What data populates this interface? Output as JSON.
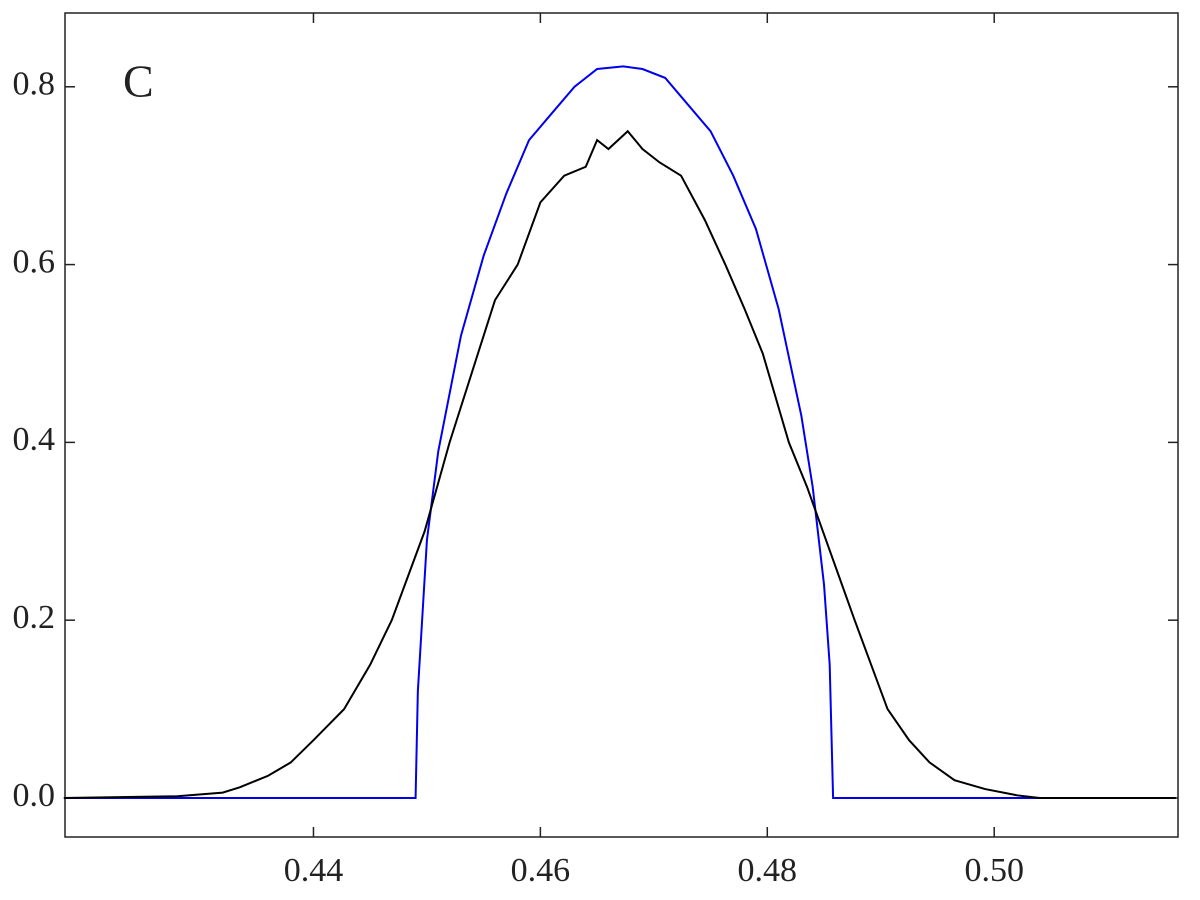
{
  "chart_data": {
    "type": "line",
    "panel_label": "C",
    "series": [
      {
        "color": "#0000ee",
        "x": [
          0.418,
          0.449,
          0.4492,
          0.45,
          0.451,
          0.453,
          0.455,
          0.457,
          0.459,
          0.461,
          0.463,
          0.465,
          0.4673,
          0.469,
          0.471,
          0.473,
          0.475,
          0.477,
          0.479,
          0.481,
          0.483,
          0.484,
          0.485,
          0.4855,
          0.4858,
          0.516
        ],
        "values": [
          0,
          0,
          0.12,
          0.29,
          0.39,
          0.52,
          0.61,
          0.68,
          0.74,
          0.77,
          0.8,
          0.82,
          0.823,
          0.82,
          0.81,
          0.78,
          0.75,
          0.7,
          0.64,
          0.55,
          0.43,
          0.35,
          0.24,
          0.15,
          0,
          0
        ]
      },
      {
        "color": "#000000",
        "x": [
          0.418,
          0.428,
          0.432,
          0.4335,
          0.436,
          0.438,
          0.44,
          0.4427,
          0.445,
          0.4469,
          0.4498,
          0.452,
          0.4545,
          0.456,
          0.458,
          0.46,
          0.4621,
          0.464,
          0.465,
          0.466,
          0.4677,
          0.469,
          0.4705,
          0.4724,
          0.4745,
          0.4763,
          0.478,
          0.4796,
          0.4819,
          0.4835,
          0.4849,
          0.4863,
          0.4877,
          0.4906,
          0.4925,
          0.4943,
          0.4965,
          0.4992,
          0.502,
          0.504,
          0.516
        ],
        "values": [
          0,
          0.002,
          0.006,
          0.012,
          0.025,
          0.04,
          0.065,
          0.1,
          0.15,
          0.2,
          0.3,
          0.4,
          0.5,
          0.56,
          0.6,
          0.67,
          0.7,
          0.71,
          0.74,
          0.73,
          0.75,
          0.73,
          0.715,
          0.7,
          0.65,
          0.6,
          0.55,
          0.5,
          0.4,
          0.35,
          0.3,
          0.25,
          0.2,
          0.1,
          0.065,
          0.04,
          0.02,
          0.01,
          0.003,
          0,
          0
        ]
      }
    ],
    "xlim": [
      0.4181,
      0.5162
    ],
    "ylim": [
      -0.0439,
      0.883
    ],
    "xticks": [
      0.44,
      0.46,
      0.48,
      {
        "value": 0.5,
        "label": "0.50"
      }
    ],
    "yticks": [
      {
        "value": 0,
        "label": "0.0"
      },
      0.2,
      0.4,
      0.6,
      0.8
    ]
  }
}
